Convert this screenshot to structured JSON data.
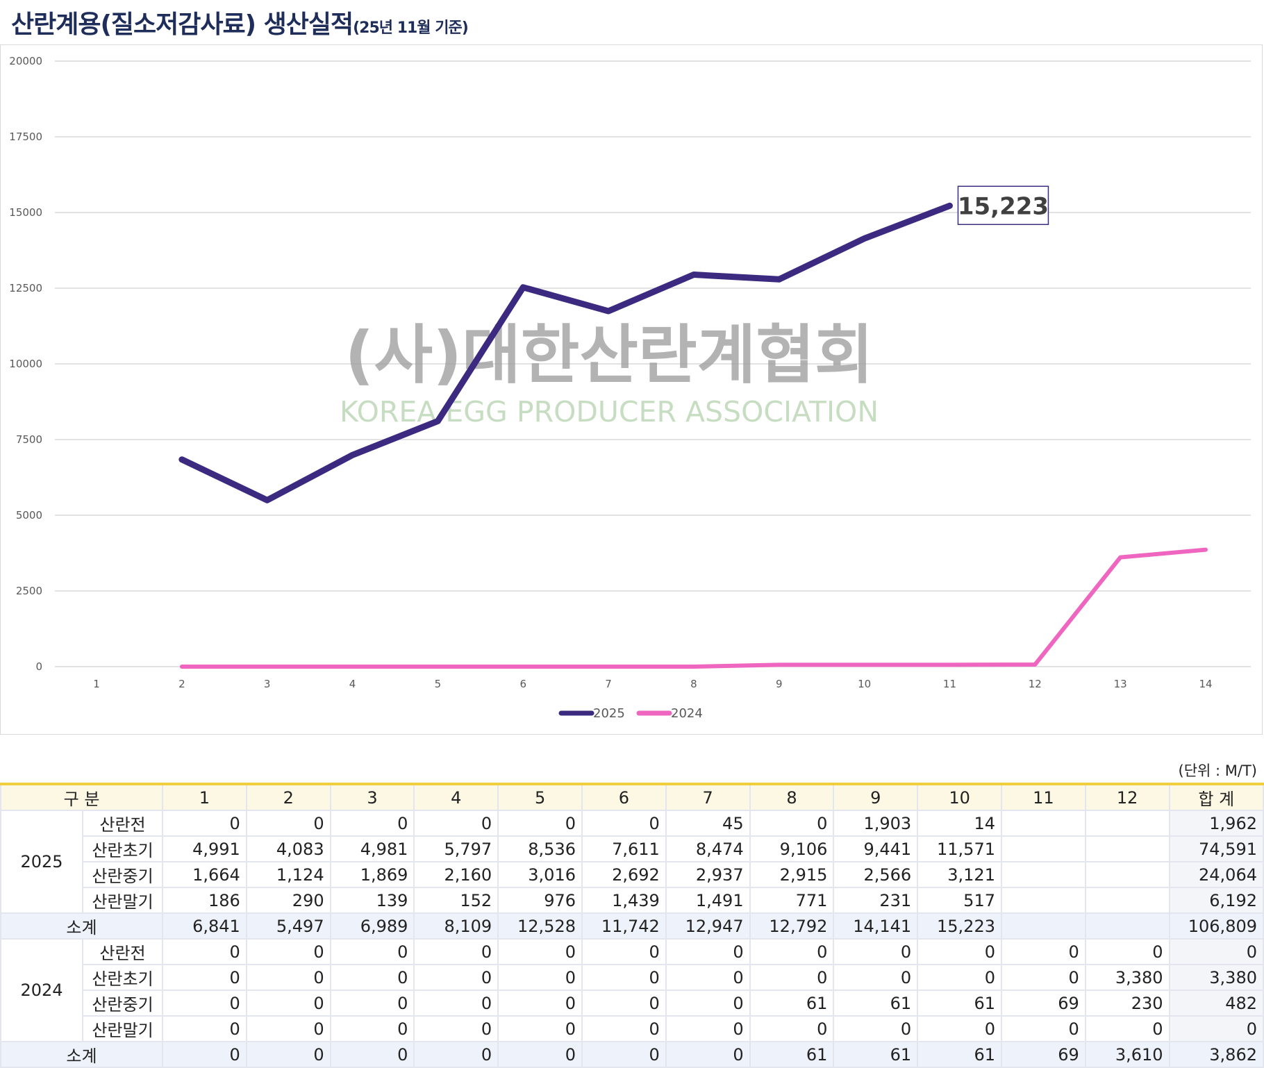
{
  "title": {
    "main": "산란계용(질소저감사료) 생산실적",
    "sub": "(25년 11월 기준)"
  },
  "watermark": {
    "ko": "(사)대한산란계협회",
    "en": "KOREA EGG PRODUCER ASSOCIATION"
  },
  "chart_data": {
    "type": "line",
    "x": [
      1,
      2,
      3,
      4,
      5,
      6,
      7,
      8,
      9,
      10,
      11,
      12,
      13,
      14
    ],
    "ylim": [
      0,
      20000
    ],
    "yticks": [
      0,
      2500,
      5000,
      7500,
      10000,
      12500,
      15000,
      17500,
      20000
    ],
    "grid": true,
    "legend": "bottom",
    "series": [
      {
        "name": "2025",
        "color": "#3b2a80",
        "x": [
          2,
          3,
          4,
          5,
          6,
          7,
          8,
          9,
          10,
          11
        ],
        "values": [
          6841,
          5497,
          6989,
          8109,
          12528,
          11742,
          12947,
          12792,
          14141,
          15223
        ]
      },
      {
        "name": "2024",
        "color": "#ef66c0",
        "x": [
          2,
          3,
          4,
          5,
          6,
          7,
          8,
          9,
          10,
          11,
          12,
          13,
          14
        ],
        "values": [
          0,
          0,
          0,
          0,
          0,
          0,
          0,
          61,
          61,
          61,
          69,
          3610,
          3862
        ]
      }
    ],
    "annotation": "15,223"
  },
  "table": {
    "unit": "(단위 : M/T)",
    "header": [
      "구 분",
      "1",
      "2",
      "3",
      "4",
      "5",
      "6",
      "7",
      "8",
      "9",
      "10",
      "11",
      "12",
      "합 계"
    ],
    "groups": [
      {
        "year": "2025",
        "rows": [
          {
            "cat": "산란전",
            "vals": [
              "0",
              "0",
              "0",
              "0",
              "0",
              "0",
              "45",
              "0",
              "1,903",
              "14",
              "",
              "",
              "1,962"
            ]
          },
          {
            "cat": "산란초기",
            "vals": [
              "4,991",
              "4,083",
              "4,981",
              "5,797",
              "8,536",
              "7,611",
              "8,474",
              "9,106",
              "9,441",
              "11,571",
              "",
              "",
              "74,591"
            ]
          },
          {
            "cat": "산란중기",
            "vals": [
              "1,664",
              "1,124",
              "1,869",
              "2,160",
              "3,016",
              "2,692",
              "2,937",
              "2,915",
              "2,566",
              "3,121",
              "",
              "",
              "24,064"
            ]
          },
          {
            "cat": "산란말기",
            "vals": [
              "186",
              "290",
              "139",
              "152",
              "976",
              "1,439",
              "1,491",
              "771",
              "231",
              "517",
              "",
              "",
              "6,192"
            ]
          }
        ],
        "subtotal": {
          "label": "소계",
          "vals": [
            "6,841",
            "5,497",
            "6,989",
            "8,109",
            "12,528",
            "11,742",
            "12,947",
            "12,792",
            "14,141",
            "15,223",
            "",
            "",
            "106,809"
          ]
        }
      },
      {
        "year": "2024",
        "rows": [
          {
            "cat": "산란전",
            "vals": [
              "0",
              "0",
              "0",
              "0",
              "0",
              "0",
              "0",
              "0",
              "0",
              "0",
              "0",
              "0",
              "0"
            ]
          },
          {
            "cat": "산란초기",
            "vals": [
              "0",
              "0",
              "0",
              "0",
              "0",
              "0",
              "0",
              "0",
              "0",
              "0",
              "0",
              "3,380",
              "3,380"
            ]
          },
          {
            "cat": "산란중기",
            "vals": [
              "0",
              "0",
              "0",
              "0",
              "0",
              "0",
              "0",
              "61",
              "61",
              "61",
              "69",
              "230",
              "482"
            ]
          },
          {
            "cat": "산란말기",
            "vals": [
              "0",
              "0",
              "0",
              "0",
              "0",
              "0",
              "0",
              "0",
              "0",
              "0",
              "0",
              "0",
              "0"
            ]
          }
        ],
        "subtotal": {
          "label": "소계",
          "vals": [
            "0",
            "0",
            "0",
            "0",
            "0",
            "0",
            "0",
            "61",
            "61",
            "61",
            "69",
            "3,610",
            "3,862"
          ]
        }
      }
    ]
  }
}
